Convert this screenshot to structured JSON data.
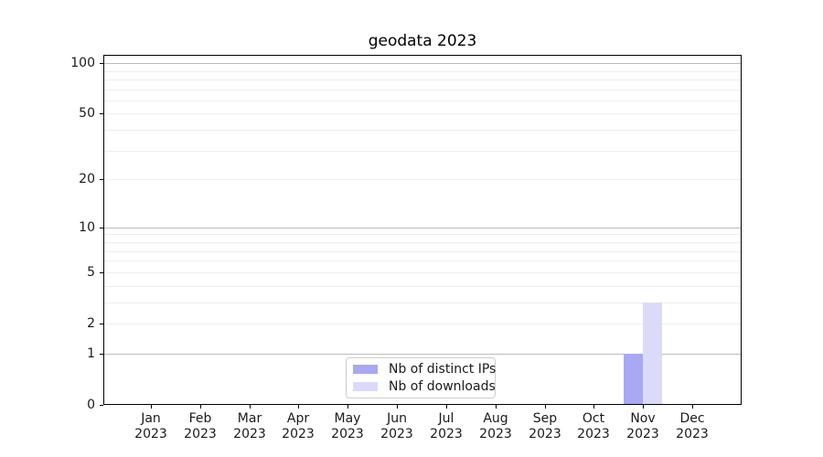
{
  "chart_data": {
    "type": "bar",
    "title": "geodata 2023",
    "x_month_labels": [
      "Jan",
      "Feb",
      "Mar",
      "Apr",
      "May",
      "Jun",
      "Jul",
      "Aug",
      "Sep",
      "Oct",
      "Nov",
      "Dec"
    ],
    "x_year_label": "2023",
    "series": [
      {
        "name": "Nb of distinct IPs",
        "color": "#a8a8f4",
        "values": [
          0,
          0,
          0,
          0,
          0,
          0,
          0,
          0,
          0,
          0,
          1,
          0
        ]
      },
      {
        "name": "Nb of downloads",
        "color": "#dbdbf9",
        "values": [
          0,
          0,
          0,
          0,
          0,
          0,
          0,
          0,
          0,
          0,
          3,
          0
        ]
      }
    ],
    "yscale": "log1p",
    "ylim": [
      0,
      112
    ],
    "yticks_labeled": [
      0,
      1,
      2,
      5,
      10,
      20,
      50,
      100
    ],
    "ytick_label_texts": [
      "0",
      "1",
      "2",
      "5",
      "10",
      "20",
      "50",
      "100"
    ],
    "yticks_major_grid": [
      1,
      10,
      100
    ],
    "yticks_minor_grid": [
      2,
      3,
      4,
      5,
      6,
      7,
      8,
      9,
      20,
      30,
      40,
      50,
      60,
      70,
      80,
      90
    ],
    "grid": true,
    "legend_position": "lower center"
  },
  "colors": {
    "grid_major": "#bbbbbb",
    "grid_minor": "#ededed",
    "axis": "#000000",
    "text": "#1a1a1a",
    "legend_border": "#cccccc",
    "background": "#ffffff"
  }
}
